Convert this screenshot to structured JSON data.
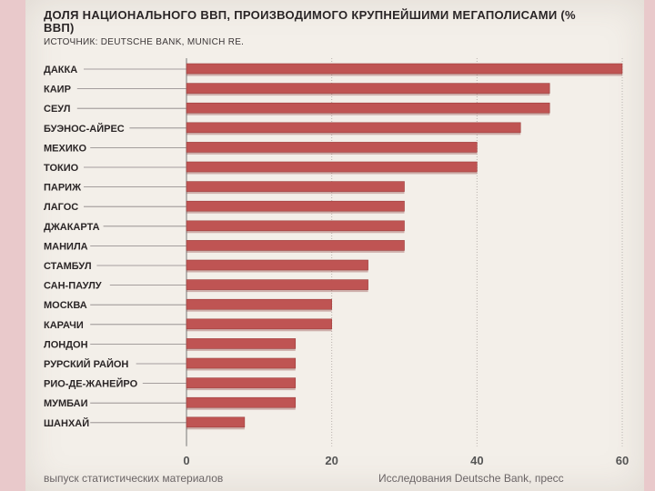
{
  "chart_data": {
    "type": "bar",
    "orientation": "horizontal",
    "title": "ДОЛЯ НАЦИОНАЛЬНОГО ВВП, ПРОИЗВОДИМОГО КРУПНЕЙШИМИ МЕГАПОЛИСАМИ (% ВВП)",
    "source": "ИСТОЧНИК: DEUTSCHE BANK, MUNICH RE.",
    "categories": [
      "ДАККА",
      "КАИР",
      "СЕУЛ",
      "БУЭНОС-АЙРЕС",
      "МЕХИКО",
      "ТОКИО",
      "ПАРИЖ",
      "ЛАГОС",
      "ДЖАКАРТА",
      "МАНИЛА",
      "СТАМБУЛ",
      "САН-ПАУЛУ",
      "МОСКВА",
      "КАРАЧИ",
      "ЛОНДОН",
      "РУРСКИЙ РАЙОН",
      "РИО-ДЕ-ЖАНЕЙРО",
      "МУМБАИ",
      "ШАНХАЙ"
    ],
    "values": [
      60,
      50,
      50,
      46,
      40,
      40,
      30,
      30,
      30,
      30,
      25,
      25,
      20,
      20,
      15,
      15,
      15,
      15,
      8
    ],
    "xlim": [
      0,
      60
    ],
    "xticks": [
      0,
      20,
      40,
      60
    ],
    "bar_color": "#bf5453",
    "grid": "vertical-dotted"
  },
  "footer": {
    "left": "выпуск статистических материалов",
    "right": "Исследования Deutsche Bank, пресс"
  }
}
